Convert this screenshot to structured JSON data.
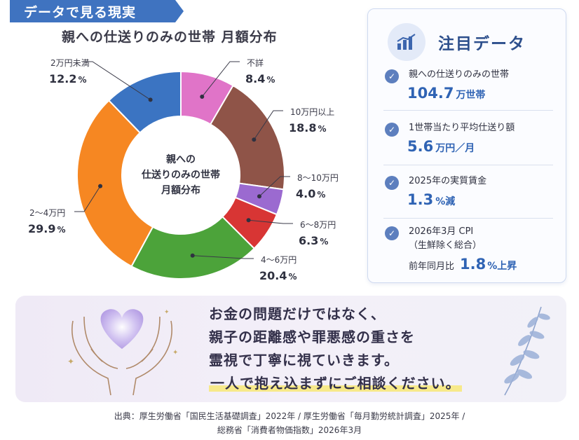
{
  "banner": {
    "label": "データで見る現実"
  },
  "chart_data": {
    "type": "pie",
    "title": "親への仕送りのみの世帯 月額分布",
    "center_label": [
      "親への",
      "仕送りのみの世帯",
      "月額分布"
    ],
    "slices": [
      {
        "name": "不詳",
        "value": 8.4,
        "color": "#e074c8"
      },
      {
        "name": "10万円以上",
        "value": 18.8,
        "color": "#8f5448"
      },
      {
        "name": "8～10万円",
        "value": 4.0,
        "color": "#9b6ad0"
      },
      {
        "name": "6～8万円",
        "value": 6.3,
        "color": "#d83534"
      },
      {
        "name": "4～6万円",
        "value": 20.4,
        "color": "#4ca33a"
      },
      {
        "name": "2～4万円",
        "value": 29.9,
        "color": "#f68722"
      },
      {
        "name": "2万円未満",
        "value": 12.2,
        "color": "#3b74c2"
      }
    ],
    "value_suffix": "%"
  },
  "panel": {
    "title": "注目データ",
    "items": [
      {
        "label": "親への仕送りのみの世帯",
        "value": "104.7",
        "unit": "万世帯"
      },
      {
        "label": "1世帯当たり平均仕送り額",
        "value": "5.6",
        "unit": "万円／月"
      },
      {
        "label": "2025年の実質賃金",
        "value": "1.3",
        "unit": "%減"
      }
    ],
    "cpi": {
      "line1": "2026年3月 CPI",
      "line2": "（生鮮除く総合）",
      "prefix": "前年同月比",
      "value": "1.8",
      "unit": "%上昇"
    }
  },
  "message": {
    "lines": [
      "お金の問題だけではなく、",
      "親子の距離感や罪悪感の重さを",
      "霊視で丁寧に視ていきます。"
    ],
    "highlight": "一人で抱え込まずにご相談ください。"
  },
  "source": {
    "line1": "出典：厚生労働省「国民生活基礎調査」2022年 / 厚生労働省「毎月勤労統計調査」2025年 /",
    "line2": "総務省「消費者物価指数」2026年3月"
  }
}
